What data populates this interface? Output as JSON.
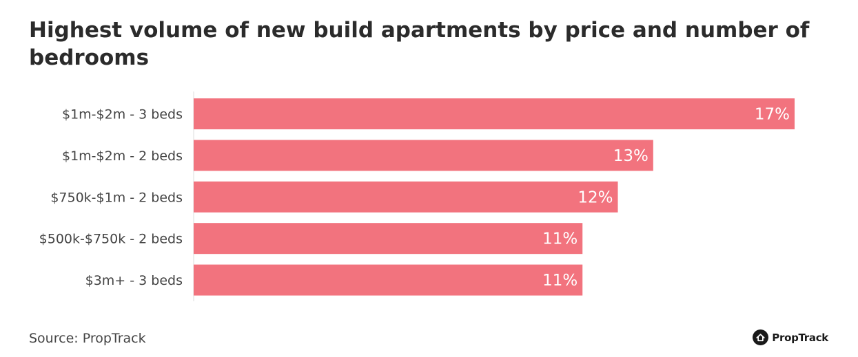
{
  "title": "Highest volume of new build apartments by price and number of bedrooms",
  "source": "Source: PropTrack",
  "logo": {
    "text": "PropTrack",
    "icon": "house-icon"
  },
  "colors": {
    "bar": "#f2737e",
    "axis": "#dddddd",
    "value_text": "#ffffff"
  },
  "chart_data": {
    "type": "bar",
    "orientation": "horizontal",
    "categories": [
      "$1m-$2m - 3 beds",
      "$1m-$2m - 2 beds",
      "$750k-$1m - 2 beds",
      "$500k-$750k - 2 beds",
      "$3m+ - 3 beds"
    ],
    "values": [
      17,
      13,
      12,
      11,
      11
    ],
    "value_labels": [
      "17%",
      "13%",
      "12%",
      "11%",
      "11%"
    ],
    "unit": "%",
    "xlim": [
      0,
      17
    ],
    "grid": false,
    "legend": "none"
  }
}
